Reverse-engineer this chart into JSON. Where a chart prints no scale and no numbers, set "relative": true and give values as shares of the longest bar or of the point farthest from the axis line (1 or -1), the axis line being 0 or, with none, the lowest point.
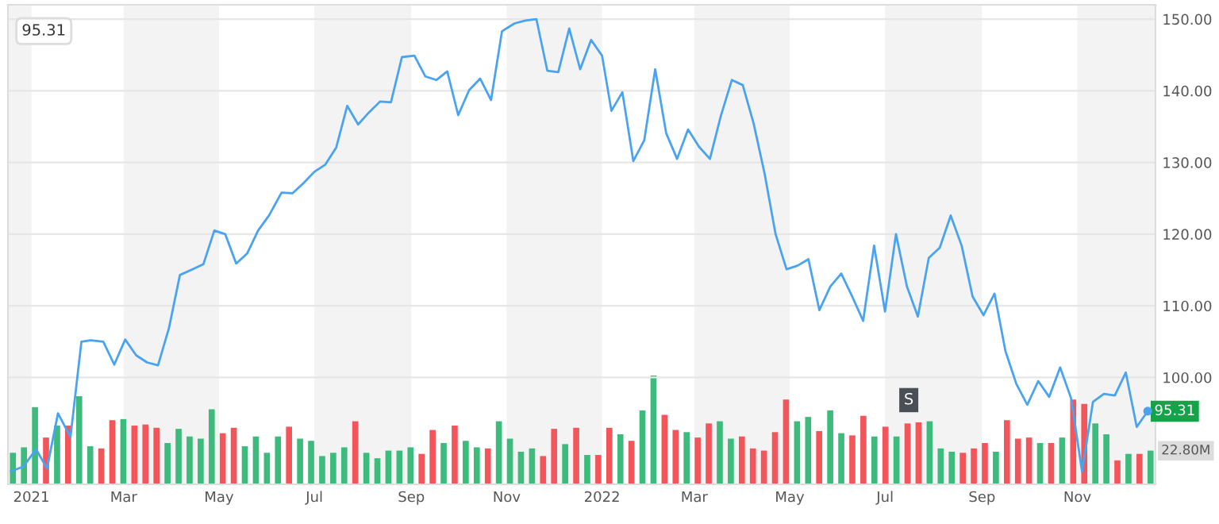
{
  "chart_data": [
    {
      "type": "line",
      "color": "#4aa3f0",
      "x": [
        "2020-12-19",
        "2020-12-27",
        "2021-01-04",
        "2021-01-11",
        "2021-01-18",
        "2021-01-26",
        "2021-02-02",
        "2021-02-08",
        "2021-02-16",
        "2021-02-23",
        "2021-03-02",
        "2021-03-09",
        "2021-03-16",
        "2021-03-23",
        "2021-03-30",
        "2021-04-06",
        "2021-04-14",
        "2021-04-21",
        "2021-04-28",
        "2021-05-05",
        "2021-05-12",
        "2021-05-19",
        "2021-05-26",
        "2021-06-02",
        "2021-06-10",
        "2021-06-17",
        "2021-06-24",
        "2021-07-01",
        "2021-07-08",
        "2021-07-15",
        "2021-07-22",
        "2021-07-29",
        "2021-08-05",
        "2021-08-12",
        "2021-08-19",
        "2021-08-26",
        "2021-09-03",
        "2021-09-10",
        "2021-09-17",
        "2021-09-24",
        "2021-10-01",
        "2021-10-08",
        "2021-10-15",
        "2021-10-22",
        "2021-10-29",
        "2021-11-06",
        "2021-11-13",
        "2021-11-20",
        "2021-11-27",
        "2021-12-04",
        "2021-12-11",
        "2021-12-18",
        "2021-12-25",
        "2022-01-01",
        "2022-01-07",
        "2022-01-14",
        "2022-01-21",
        "2022-01-28",
        "2022-02-04",
        "2022-02-11",
        "2022-02-18",
        "2022-02-25",
        "2022-03-04",
        "2022-03-11",
        "2022-03-18",
        "2022-03-25",
        "2022-04-01",
        "2022-04-08",
        "2022-04-15",
        "2022-04-22",
        "2022-04-29",
        "2022-05-06",
        "2022-05-13",
        "2022-05-20",
        "2022-05-27",
        "2022-06-03",
        "2022-06-10",
        "2022-06-17",
        "2022-06-24",
        "2022-07-01",
        "2022-07-08",
        "2022-07-15",
        "2022-07-22",
        "2022-07-29",
        "2022-08-05",
        "2022-08-12",
        "2022-08-19",
        "2022-08-26",
        "2022-09-02",
        "2022-09-09",
        "2022-09-16",
        "2022-09-23",
        "2022-09-30",
        "2022-10-07",
        "2022-10-14",
        "2022-10-21",
        "2022-10-28",
        "2022-11-04",
        "2022-11-11",
        "2022-11-18",
        "2022-11-25",
        "2022-12-02",
        "2022-12-09",
        "2022-12-16"
      ],
      "values": [
        86.9,
        87.6,
        90.0,
        87.3,
        95.0,
        91.7,
        105.0,
        105.2,
        105.0,
        101.8,
        105.3,
        103.1,
        102.1,
        101.7,
        106.9,
        114.3,
        115.1,
        115.8,
        120.5,
        120.0,
        115.9,
        117.3,
        120.5,
        122.6,
        125.8,
        125.7,
        127.1,
        128.7,
        129.7,
        132.1,
        137.9,
        135.3,
        137.0,
        138.5,
        138.4,
        144.7,
        144.9,
        142.0,
        141.5,
        142.7,
        136.6,
        140.1,
        141.7,
        138.7,
        148.3,
        149.4,
        149.8,
        150.0,
        142.8,
        142.6,
        148.7,
        143.0,
        147.1,
        144.9,
        137.2,
        139.8,
        130.2,
        133.1,
        143.0,
        134.1,
        130.5,
        134.6,
        132.2,
        130.5,
        136.5,
        141.5,
        140.8,
        135.4,
        128.4,
        120.0,
        115.1,
        115.6,
        116.5,
        109.4,
        112.7,
        114.5,
        111.3,
        107.9,
        118.4,
        109.2,
        120.0,
        112.7,
        108.5,
        116.7,
        118.1,
        122.6,
        118.4,
        111.3,
        108.7,
        111.7,
        103.7,
        99.1,
        96.2,
        99.5,
        97.3,
        101.4,
        97.1,
        86.9,
        96.6,
        97.7,
        97.5,
        100.7,
        93.1,
        95.3
      ],
      "xlim": [
        "2020-12-17",
        "2022-12-21"
      ],
      "xticks": [
        {
          "value": "2021-01-01",
          "label": "2021"
        },
        {
          "value": "2021-03-01",
          "label": "Mar"
        },
        {
          "value": "2021-05-01",
          "label": "May"
        },
        {
          "value": "2021-07-01",
          "label": "Jul"
        },
        {
          "value": "2021-09-01",
          "label": "Sep"
        },
        {
          "value": "2021-11-01",
          "label": "Nov"
        },
        {
          "value": "2022-01-01",
          "label": "2022"
        },
        {
          "value": "2022-03-01",
          "label": "Mar"
        },
        {
          "value": "2022-05-01",
          "label": "May"
        },
        {
          "value": "2022-07-01",
          "label": "Jul"
        },
        {
          "value": "2022-09-01",
          "label": "Sep"
        },
        {
          "value": "2022-11-01",
          "label": "Nov"
        }
      ],
      "ylim": [
        85.1,
        152
      ],
      "yticks": [
        {
          "value": 100,
          "label": "100.00"
        },
        {
          "value": 110,
          "label": "110.00"
        },
        {
          "value": 120,
          "label": "120.00"
        },
        {
          "value": 130,
          "label": "130.00"
        },
        {
          "value": 140,
          "label": "140.00"
        },
        {
          "value": 150,
          "label": "150.00"
        }
      ],
      "grid": "y",
      "bands": [
        {
          "axis": "x",
          "from": "2020-12-17",
          "to": "2021-01-01",
          "color": "#f3f3f3"
        },
        {
          "axis": "x",
          "from": "2021-03-01",
          "to": "2021-05-01",
          "color": "#f3f3f3"
        },
        {
          "axis": "x",
          "from": "2021-07-01",
          "to": "2021-09-01",
          "color": "#f3f3f3"
        },
        {
          "axis": "x",
          "from": "2021-11-01",
          "to": "2022-01-01",
          "color": "#f3f3f3"
        },
        {
          "axis": "x",
          "from": "2022-03-01",
          "to": "2022-05-01",
          "color": "#f3f3f3"
        },
        {
          "axis": "x",
          "from": "2022-07-01",
          "to": "2022-09-01",
          "color": "#f3f3f3"
        },
        {
          "axis": "x",
          "from": "2022-11-01",
          "to": "2022-12-21",
          "color": "#f3f3f3"
        }
      ],
      "annotations": [
        "95.31",
        {
          "text": "95.31",
          "x": "2022-12-16",
          "y": 95.3
        },
        "22.80M",
        "S"
      ]
    },
    {
      "type": "bar",
      "relative": true,
      "categories": [
        null,
        null,
        null,
        null,
        null,
        null,
        null,
        null,
        null,
        null,
        null,
        null,
        null,
        null,
        null,
        null,
        null,
        null,
        null,
        null,
        null,
        null,
        null,
        null,
        null,
        null,
        null,
        null,
        null,
        null,
        null,
        null,
        null,
        null,
        null,
        null,
        null,
        null,
        null,
        null,
        null,
        null,
        null,
        null,
        null,
        null,
        null,
        null,
        null,
        null,
        null,
        null,
        null,
        null,
        null,
        null,
        null,
        null,
        null,
        null,
        null,
        null,
        null,
        null,
        null,
        null,
        null,
        null,
        null,
        null,
        null,
        null,
        null,
        null,
        null,
        null,
        null,
        null,
        null,
        null,
        null,
        null,
        null,
        null,
        null,
        null,
        null,
        null,
        null,
        null,
        null,
        null,
        null,
        null,
        null,
        null,
        null,
        null,
        null,
        null,
        null,
        null,
        null,
        null
      ],
      "values": [
        0.29,
        0.34,
        0.71,
        0.43,
        0.54,
        0.54,
        0.81,
        0.35,
        0.33,
        0.59,
        0.6,
        0.54,
        0.55,
        0.52,
        0.38,
        0.51,
        0.44,
        0.42,
        0.69,
        0.47,
        0.52,
        0.35,
        0.44,
        0.29,
        0.44,
        0.53,
        0.42,
        0.4,
        0.26,
        0.29,
        0.34,
        0.58,
        0.29,
        0.24,
        0.31,
        0.31,
        0.34,
        0.28,
        0.5,
        0.38,
        0.54,
        0.4,
        0.34,
        0.33,
        0.58,
        0.42,
        0.3,
        0.33,
        0.26,
        0.51,
        0.37,
        0.52,
        0.27,
        0.27,
        0.52,
        0.46,
        0.4,
        0.68,
        1.0,
        0.64,
        0.5,
        0.48,
        0.43,
        0.56,
        0.58,
        0.42,
        0.44,
        0.33,
        0.31,
        0.48,
        0.78,
        0.58,
        0.62,
        0.49,
        0.68,
        0.47,
        0.45,
        0.63,
        0.44,
        0.53,
        0.44,
        0.56,
        0.57,
        0.58,
        0.33,
        0.3,
        0.29,
        0.33,
        0.38,
        0.3,
        0.59,
        0.42,
        0.43,
        0.38,
        0.38,
        0.43,
        0.78,
        0.74,
        0.56,
        0.46,
        0.22,
        0.28,
        0.28,
        0.31
      ],
      "colors": [
        "#3dbb7c",
        "#3dbb7c",
        "#3dbb7c",
        "#f2555a",
        "#3dbb7c",
        "#f2555a",
        "#3dbb7c",
        "#3dbb7c",
        "#f2555a",
        "#f2555a",
        "#3dbb7c",
        "#f2555a",
        "#f2555a",
        "#f2555a",
        "#3dbb7c",
        "#3dbb7c",
        "#3dbb7c",
        "#3dbb7c",
        "#3dbb7c",
        "#f2555a",
        "#f2555a",
        "#3dbb7c",
        "#3dbb7c",
        "#3dbb7c",
        "#3dbb7c",
        "#f2555a",
        "#3dbb7c",
        "#3dbb7c",
        "#3dbb7c",
        "#3dbb7c",
        "#3dbb7c",
        "#f2555a",
        "#3dbb7c",
        "#3dbb7c",
        "#3dbb7c",
        "#3dbb7c",
        "#3dbb7c",
        "#f2555a",
        "#f2555a",
        "#3dbb7c",
        "#f2555a",
        "#3dbb7c",
        "#3dbb7c",
        "#f2555a",
        "#3dbb7c",
        "#3dbb7c",
        "#3dbb7c",
        "#3dbb7c",
        "#f2555a",
        "#f2555a",
        "#3dbb7c",
        "#f2555a",
        "#3dbb7c",
        "#f2555a",
        "#f2555a",
        "#3dbb7c",
        "#f2555a",
        "#3dbb7c",
        "#3dbb7c",
        "#f2555a",
        "#f2555a",
        "#3dbb7c",
        "#f2555a",
        "#f2555a",
        "#3dbb7c",
        "#3dbb7c",
        "#f2555a",
        "#f2555a",
        "#f2555a",
        "#f2555a",
        "#f2555a",
        "#3dbb7c",
        "#3dbb7c",
        "#f2555a",
        "#3dbb7c",
        "#3dbb7c",
        "#f2555a",
        "#f2555a",
        "#3dbb7c",
        "#f2555a",
        "#3dbb7c",
        "#f2555a",
        "#f2555a",
        "#3dbb7c",
        "#3dbb7c",
        "#3dbb7c",
        "#f2555a",
        "#f2555a",
        "#f2555a",
        "#3dbb7c",
        "#f2555a",
        "#f2555a",
        "#f2555a",
        "#3dbb7c",
        "#f2555a",
        "#3dbb7c",
        "#f2555a",
        "#f2555a",
        "#3dbb7c",
        "#3dbb7c",
        "#f2555a",
        "#3dbb7c",
        "#f2555a",
        "#3dbb7c"
      ]
    }
  ]
}
